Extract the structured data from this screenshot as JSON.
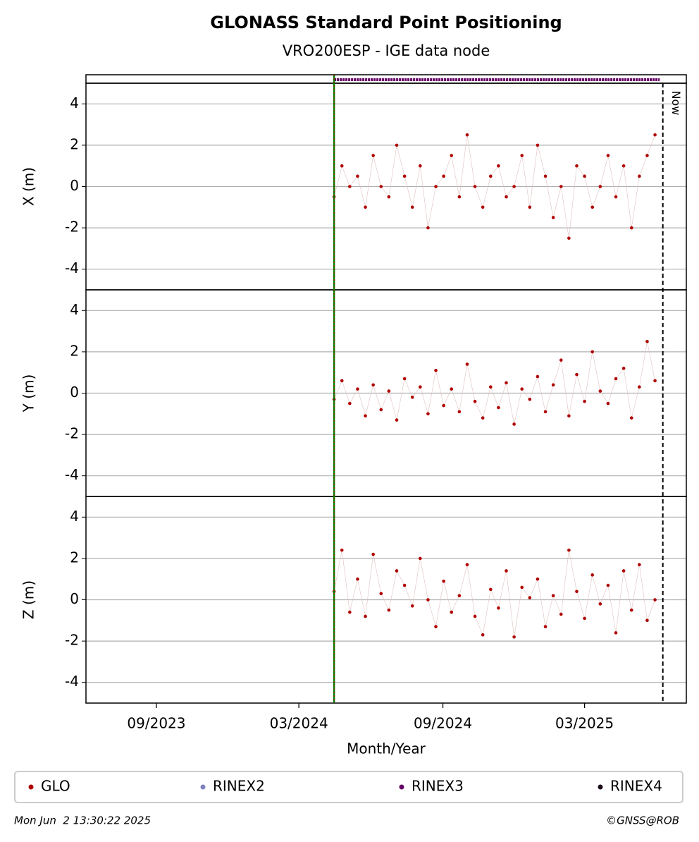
{
  "chart_data": {
    "type": "scatter",
    "title": "GLONASS Standard Point Positioning",
    "subtitle": "VRO200ESP - IGE data node",
    "xlabel": "Month/Year",
    "xlim": [
      "2023-06-03",
      "2025-07-09"
    ],
    "xticks": [
      {
        "value": "2023-09-01",
        "label": "09/2023"
      },
      {
        "value": "2024-03-01",
        "label": "03/2024"
      },
      {
        "value": "2024-09-01",
        "label": "09/2024"
      },
      {
        "value": "2025-03-01",
        "label": "03/2025"
      }
    ],
    "ylim": [
      -5,
      5
    ],
    "yticks": [
      -4,
      -2,
      0,
      2,
      4
    ],
    "grid": true,
    "x": [
      "2024-04-15",
      "2024-04-25",
      "2024-05-05",
      "2024-05-15",
      "2024-05-25",
      "2024-06-04",
      "2024-06-14",
      "2024-06-24",
      "2024-07-04",
      "2024-07-14",
      "2024-07-24",
      "2024-08-03",
      "2024-08-13",
      "2024-08-23",
      "2024-09-02",
      "2024-09-12",
      "2024-09-22",
      "2024-10-02",
      "2024-10-12",
      "2024-10-22",
      "2024-11-01",
      "2024-11-11",
      "2024-11-21",
      "2024-12-01",
      "2024-12-11",
      "2024-12-21",
      "2024-12-31",
      "2025-01-10",
      "2025-01-20",
      "2025-01-30",
      "2025-02-09",
      "2025-02-19",
      "2025-03-01",
      "2025-03-11",
      "2025-03-21",
      "2025-03-31",
      "2025-04-10",
      "2025-04-20",
      "2025-04-30",
      "2025-05-10",
      "2025-05-20",
      "2025-05-30"
    ],
    "color": "#b00000",
    "panels": [
      {
        "ylabel": "X (m)",
        "values": [
          -0.5,
          1,
          0,
          0.5,
          -1,
          1.5,
          0,
          -0.5,
          2,
          0.5,
          -1,
          1,
          -2,
          0,
          0.5,
          1.5,
          -0.5,
          2.5,
          0,
          -1,
          0.5,
          1,
          -0.5,
          0,
          1.5,
          -1,
          2,
          0.5,
          -1.5,
          0,
          -2.5,
          1,
          0.5,
          -1,
          0,
          1.5,
          -0.5,
          1,
          -2,
          0.5,
          1.5,
          2.5
        ]
      },
      {
        "ylabel": "Y (m)",
        "values": [
          -0.3,
          0.6,
          -0.5,
          0.2,
          -1.1,
          0.4,
          -0.8,
          0.1,
          -1.3,
          0.7,
          -0.2,
          0.3,
          -1.0,
          1.1,
          -0.6,
          0.2,
          -0.9,
          1.4,
          -0.4,
          -1.2,
          0.3,
          -0.7,
          0.5,
          -1.5,
          0.2,
          -0.3,
          0.8,
          -0.9,
          0.4,
          1.6,
          -1.1,
          0.9,
          -0.4,
          2.0,
          0.1,
          -0.5,
          0.7,
          1.2,
          -1.2,
          0.3,
          2.5,
          0.6
        ]
      },
      {
        "ylabel": "Z (m)",
        "values": [
          0.4,
          2.4,
          -0.6,
          1.0,
          -0.8,
          2.2,
          0.3,
          -0.5,
          1.4,
          0.7,
          -0.3,
          2.0,
          0.0,
          -1.3,
          0.9,
          -0.6,
          0.2,
          1.7,
          -0.8,
          -1.7,
          0.5,
          -0.4,
          1.4,
          -1.8,
          0.6,
          0.1,
          1.0,
          -1.3,
          0.2,
          -0.7,
          2.4,
          0.4,
          -0.9,
          1.2,
          -0.2,
          0.7,
          -1.6,
          1.4,
          -0.5,
          1.7,
          -1.0,
          0.0
        ]
      }
    ],
    "rinex3": {
      "x": [
        "2024-04-15",
        "2025-06-05"
      ],
      "color": "#660066"
    },
    "vlines": [
      {
        "x": "2024-04-15",
        "color": "#008000"
      },
      {
        "x": "2025-06-09",
        "color": "#000000",
        "label": "Now"
      }
    ],
    "legend": [
      {
        "name": "GLO",
        "color": "#b00000"
      },
      {
        "name": "RINEX2",
        "color": "#8080c0"
      },
      {
        "name": "RINEX3",
        "color": "#660066"
      },
      {
        "name": "RINEX4",
        "color": "#1a0a1a"
      }
    ],
    "footer_left": "Mon Jun  2 13:30:22 2025",
    "footer_right": "©GNSS@ROB"
  }
}
